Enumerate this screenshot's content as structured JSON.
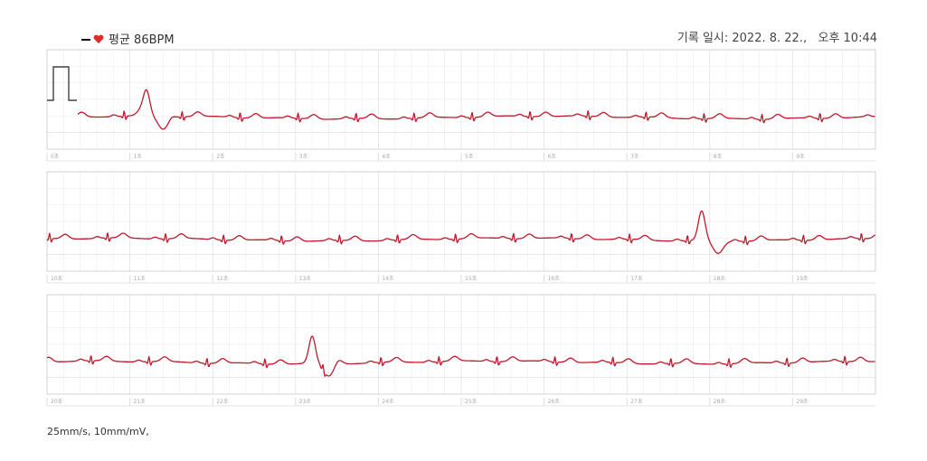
{
  "header": {
    "legend": "평균 86BPM",
    "record_time": "기록 일시: 2022. 8. 22.,   오후 10:44"
  },
  "strips": [
    {
      "time_labels": [
        "0초",
        "1초",
        "2초",
        "3초",
        "4초",
        "5초",
        "6초",
        "7초",
        "8초",
        "9초"
      ]
    },
    {
      "time_labels": [
        "10초",
        "11초",
        "12초",
        "13초",
        "14초",
        "15초",
        "16초",
        "17초",
        "18초",
        "19초"
      ]
    },
    {
      "time_labels": [
        "20초",
        "21초",
        "22초",
        "23초",
        "24초",
        "25초",
        "26초",
        "27초",
        "28초",
        "29초"
      ]
    }
  ],
  "footer": "25mm/s, 10mm/mV,"
}
